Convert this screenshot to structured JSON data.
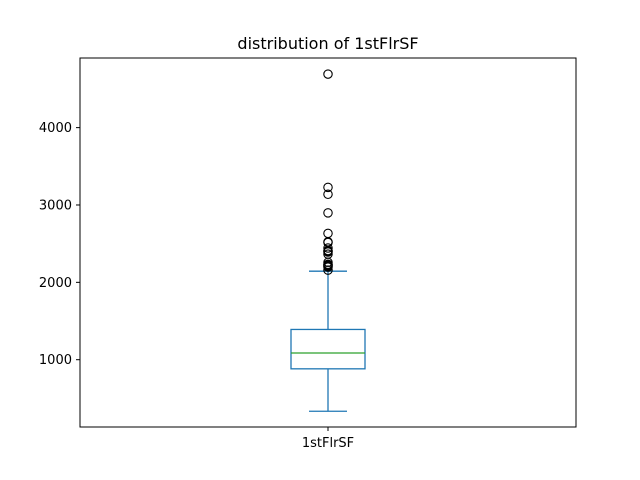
{
  "chart_data": {
    "type": "box",
    "title": "distribution of 1stFlrSF",
    "categories": [
      "1stFlrSF"
    ],
    "xlabel": "",
    "ylabel": "",
    "ylim": [
      130,
      4900
    ],
    "yticks": [
      1000,
      2000,
      3000,
      4000
    ],
    "grid": false,
    "series": [
      {
        "whisker_low": 334,
        "q1": 882,
        "median": 1087,
        "q3": 1391,
        "whisker_high": 2144,
        "outliers": [
          4692,
          3228,
          3138,
          2898,
          2633,
          2524,
          2515,
          2444,
          2411,
          2402,
          2392,
          2364,
          2259,
          2234,
          2223,
          2217,
          2207,
          2196,
          2158
        ]
      }
    ]
  },
  "colors": {
    "box": "#1f77b4",
    "median": "#2ca02c",
    "outlier": "#000000",
    "axes": "#000000"
  }
}
